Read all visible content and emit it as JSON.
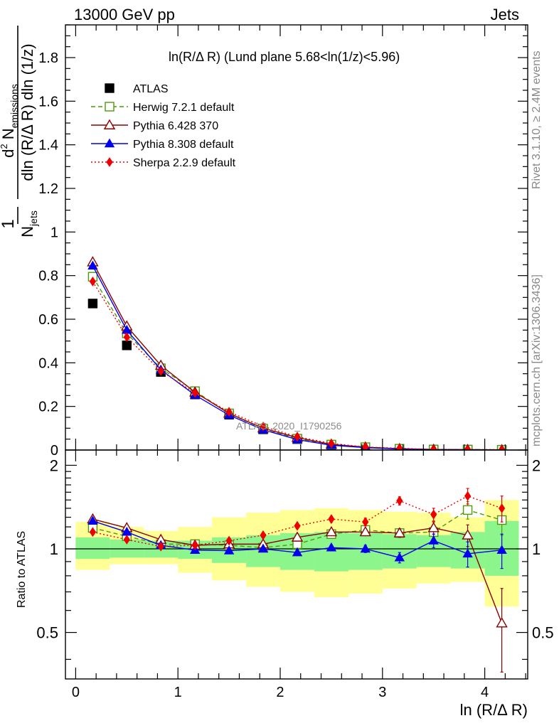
{
  "header": {
    "energy_label": "13000 GeV pp",
    "category_label": "Jets"
  },
  "side_labels": {
    "rivet": "Rivet 3.1.10, ≥ 2.4M events",
    "mcplots": "mcplots.cern.ch [arXiv:1306.3436]"
  },
  "chart_data": [
    {
      "type": "scatter",
      "panel": "main",
      "title": "ln(R/Δ R) (Lund plane 5.68<ln(1/z)<5.96)",
      "ylabel": "1/N_jets d²N_emissions / dln(R/ΔR) dln(1/z)",
      "xlabel": "",
      "watermark": "ATLAS_2020_I1790256",
      "xlim": [
        -0.1,
        4.42
      ],
      "ylim": [
        0,
        1.95
      ],
      "yticks": [
        "0.2",
        "0.4",
        "0.6",
        "0.8",
        "1",
        "1.2",
        "1.4",
        "1.6",
        "1.8"
      ],
      "legend_placement": "top-left",
      "x": [
        0.167,
        0.5,
        0.833,
        1.167,
        1.5,
        1.833,
        2.167,
        2.5,
        2.833,
        3.167,
        3.5,
        3.833,
        4.167
      ],
      "series": [
        {
          "name": "ATLAS",
          "color": "#000000",
          "marker": "square-filled",
          "line": "none",
          "values": [
            0.672,
            0.48,
            0.358,
            0.255,
            0.162,
            0.095,
            0.05,
            0.022,
            0.011,
            0.005,
            0.002,
            0.0015,
            0.001
          ]
        },
        {
          "name": "Herwig 7.2.1 default",
          "color": "#4e9a06",
          "marker": "square-open",
          "line": "dashed",
          "values": [
            0.795,
            0.535,
            0.375,
            0.27,
            0.168,
            0.098,
            0.052,
            0.025,
            0.013,
            0.006,
            0.0025,
            0.0021,
            0.0013
          ]
        },
        {
          "name": "Pythia 6.428 370",
          "color": "#8b0000",
          "marker": "triangle-open",
          "line": "solid",
          "values": [
            0.862,
            0.568,
            0.388,
            0.265,
            0.168,
            0.1,
            0.057,
            0.026,
            0.013,
            0.006,
            0.0026,
            0.0017,
            0.0005
          ]
        },
        {
          "name": "Pythia 8.308 default",
          "color": "#0000ee",
          "marker": "triangle-filled",
          "line": "solid",
          "values": [
            0.845,
            0.55,
            0.368,
            0.252,
            0.16,
            0.093,
            0.048,
            0.022,
            0.011,
            0.0047,
            0.0022,
            0.0014,
            0.001
          ]
        },
        {
          "name": "Sherpa 2.2.9 default",
          "color": "#ee0000",
          "marker": "diamond-filled",
          "line": "dotted",
          "values": [
            0.773,
            0.518,
            0.362,
            0.262,
            0.175,
            0.108,
            0.061,
            0.03,
            0.014,
            0.008,
            0.0028,
            0.0023,
            0.0014
          ]
        }
      ]
    },
    {
      "type": "scatter",
      "panel": "ratio",
      "ylabel": "Ratio to ATLAS",
      "xlabel": "ln (R/Δ R)",
      "xlim": [
        -0.1,
        4.42
      ],
      "ylim": [
        0.34,
        2.27
      ],
      "yticks": [
        "0.5",
        "1",
        "2"
      ],
      "xticks": [
        "0",
        "1",
        "2",
        "3",
        "4"
      ],
      "reference_line": 1,
      "bin_edges": [
        0.0,
        0.333,
        0.667,
        1.0,
        1.333,
        1.667,
        2.0,
        2.333,
        2.667,
        3.0,
        3.333,
        3.667,
        4.0,
        4.333
      ],
      "band_inner": {
        "color": "#8cf58c",
        "low": [
          0.92,
          0.93,
          0.93,
          0.92,
          0.89,
          0.86,
          0.84,
          0.83,
          0.84,
          0.85,
          0.86,
          0.85,
          0.8
        ],
        "high": [
          1.1,
          1.08,
          1.07,
          1.07,
          1.1,
          1.12,
          1.14,
          1.15,
          1.14,
          1.13,
          1.12,
          1.15,
          1.26
        ]
      },
      "band_outer": {
        "color": "#ffff96",
        "low": [
          0.84,
          0.88,
          0.88,
          0.82,
          0.77,
          0.73,
          0.7,
          0.67,
          0.69,
          0.72,
          0.75,
          0.76,
          0.62
        ],
        "high": [
          1.25,
          1.2,
          1.16,
          1.2,
          1.3,
          1.35,
          1.38,
          1.4,
          1.38,
          1.36,
          1.35,
          1.3,
          1.5
        ]
      },
      "x": [
        0.167,
        0.5,
        0.833,
        1.167,
        1.5,
        1.833,
        2.167,
        2.5,
        2.833,
        3.167,
        3.5,
        3.833,
        4.167
      ],
      "series": [
        {
          "name": "Herwig 7.2.1 default",
          "color": "#4e9a06",
          "marker": "square-open",
          "line": "dashed",
          "values": [
            1.19,
            1.11,
            1.04,
            1.04,
            1.03,
            1.01,
            1.04,
            1.13,
            1.17,
            1.14,
            1.15,
            1.38,
            1.27
          ],
          "errors": [
            0.01,
            0.01,
            0.01,
            0.01,
            0.01,
            0.01,
            0.02,
            0.03,
            0.03,
            0.04,
            0.05,
            0.1,
            0.15
          ]
        },
        {
          "name": "Pythia 6.428 370",
          "color": "#8b0000",
          "marker": "triangle-open",
          "line": "solid",
          "values": [
            1.28,
            1.19,
            1.08,
            1.03,
            1.04,
            1.04,
            1.1,
            1.15,
            1.15,
            1.14,
            1.19,
            1.12,
            0.54
          ],
          "errors": [
            0.01,
            0.01,
            0.01,
            0.01,
            0.01,
            0.02,
            0.02,
            0.03,
            0.03,
            0.04,
            0.06,
            0.1,
            0.18
          ]
        },
        {
          "name": "Pythia 8.308 default",
          "color": "#0000ee",
          "marker": "triangle-filled",
          "line": "solid",
          "values": [
            1.26,
            1.15,
            1.03,
            0.99,
            0.985,
            1.0,
            0.97,
            1.01,
            1.0,
            0.93,
            1.07,
            0.96,
            0.99
          ],
          "errors": [
            0.01,
            0.01,
            0.01,
            0.01,
            0.01,
            0.01,
            0.02,
            0.02,
            0.03,
            0.04,
            0.06,
            0.1,
            0.14
          ]
        },
        {
          "name": "Sherpa 2.2.9 default",
          "color": "#ee0000",
          "marker": "diamond-filled",
          "line": "dotted",
          "values": [
            1.15,
            1.08,
            1.02,
            1.03,
            1.07,
            1.12,
            1.21,
            1.28,
            1.25,
            1.49,
            1.33,
            1.55,
            1.4
          ],
          "errors": [
            0.01,
            0.01,
            0.01,
            0.01,
            0.01,
            0.02,
            0.02,
            0.03,
            0.04,
            0.05,
            0.07,
            0.1,
            0.15
          ]
        }
      ]
    }
  ]
}
